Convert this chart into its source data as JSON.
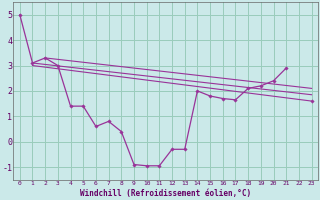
{
  "xlabel": "Windchill (Refroidissement éolien,°C)",
  "background_color": "#cbe9e9",
  "line_color": "#993399",
  "grid_color": "#99ccbb",
  "xlim": [
    -0.5,
    23.5
  ],
  "ylim": [
    -1.5,
    5.5
  ],
  "yticks": [
    -1,
    0,
    1,
    2,
    3,
    4,
    5
  ],
  "xticks": [
    0,
    1,
    2,
    3,
    4,
    5,
    6,
    7,
    8,
    9,
    10,
    11,
    12,
    13,
    14,
    15,
    16,
    17,
    18,
    19,
    20,
    21,
    22,
    23
  ],
  "curve_x": [
    0,
    1,
    2,
    3,
    4,
    5,
    6,
    7,
    8,
    9,
    10,
    11,
    12,
    13,
    14,
    15,
    16,
    17,
    18,
    19,
    20,
    21,
    22,
    23
  ],
  "curve_y": [
    5.0,
    3.1,
    3.3,
    3.0,
    1.4,
    1.4,
    0.6,
    0.8,
    0.4,
    -0.9,
    -0.95,
    -0.95,
    -0.3,
    -0.3,
    2.0,
    1.8,
    1.7,
    1.65,
    2.1,
    2.2,
    2.4,
    2.9,
    null,
    1.6
  ],
  "trend1_x": [
    1,
    23
  ],
  "trend1_y": [
    3.1,
    1.85
  ],
  "trend2_x": [
    2,
    23
  ],
  "trend2_y": [
    3.3,
    2.1
  ],
  "trend3_x": [
    1,
    23
  ],
  "trend3_y": [
    3.0,
    1.6
  ]
}
